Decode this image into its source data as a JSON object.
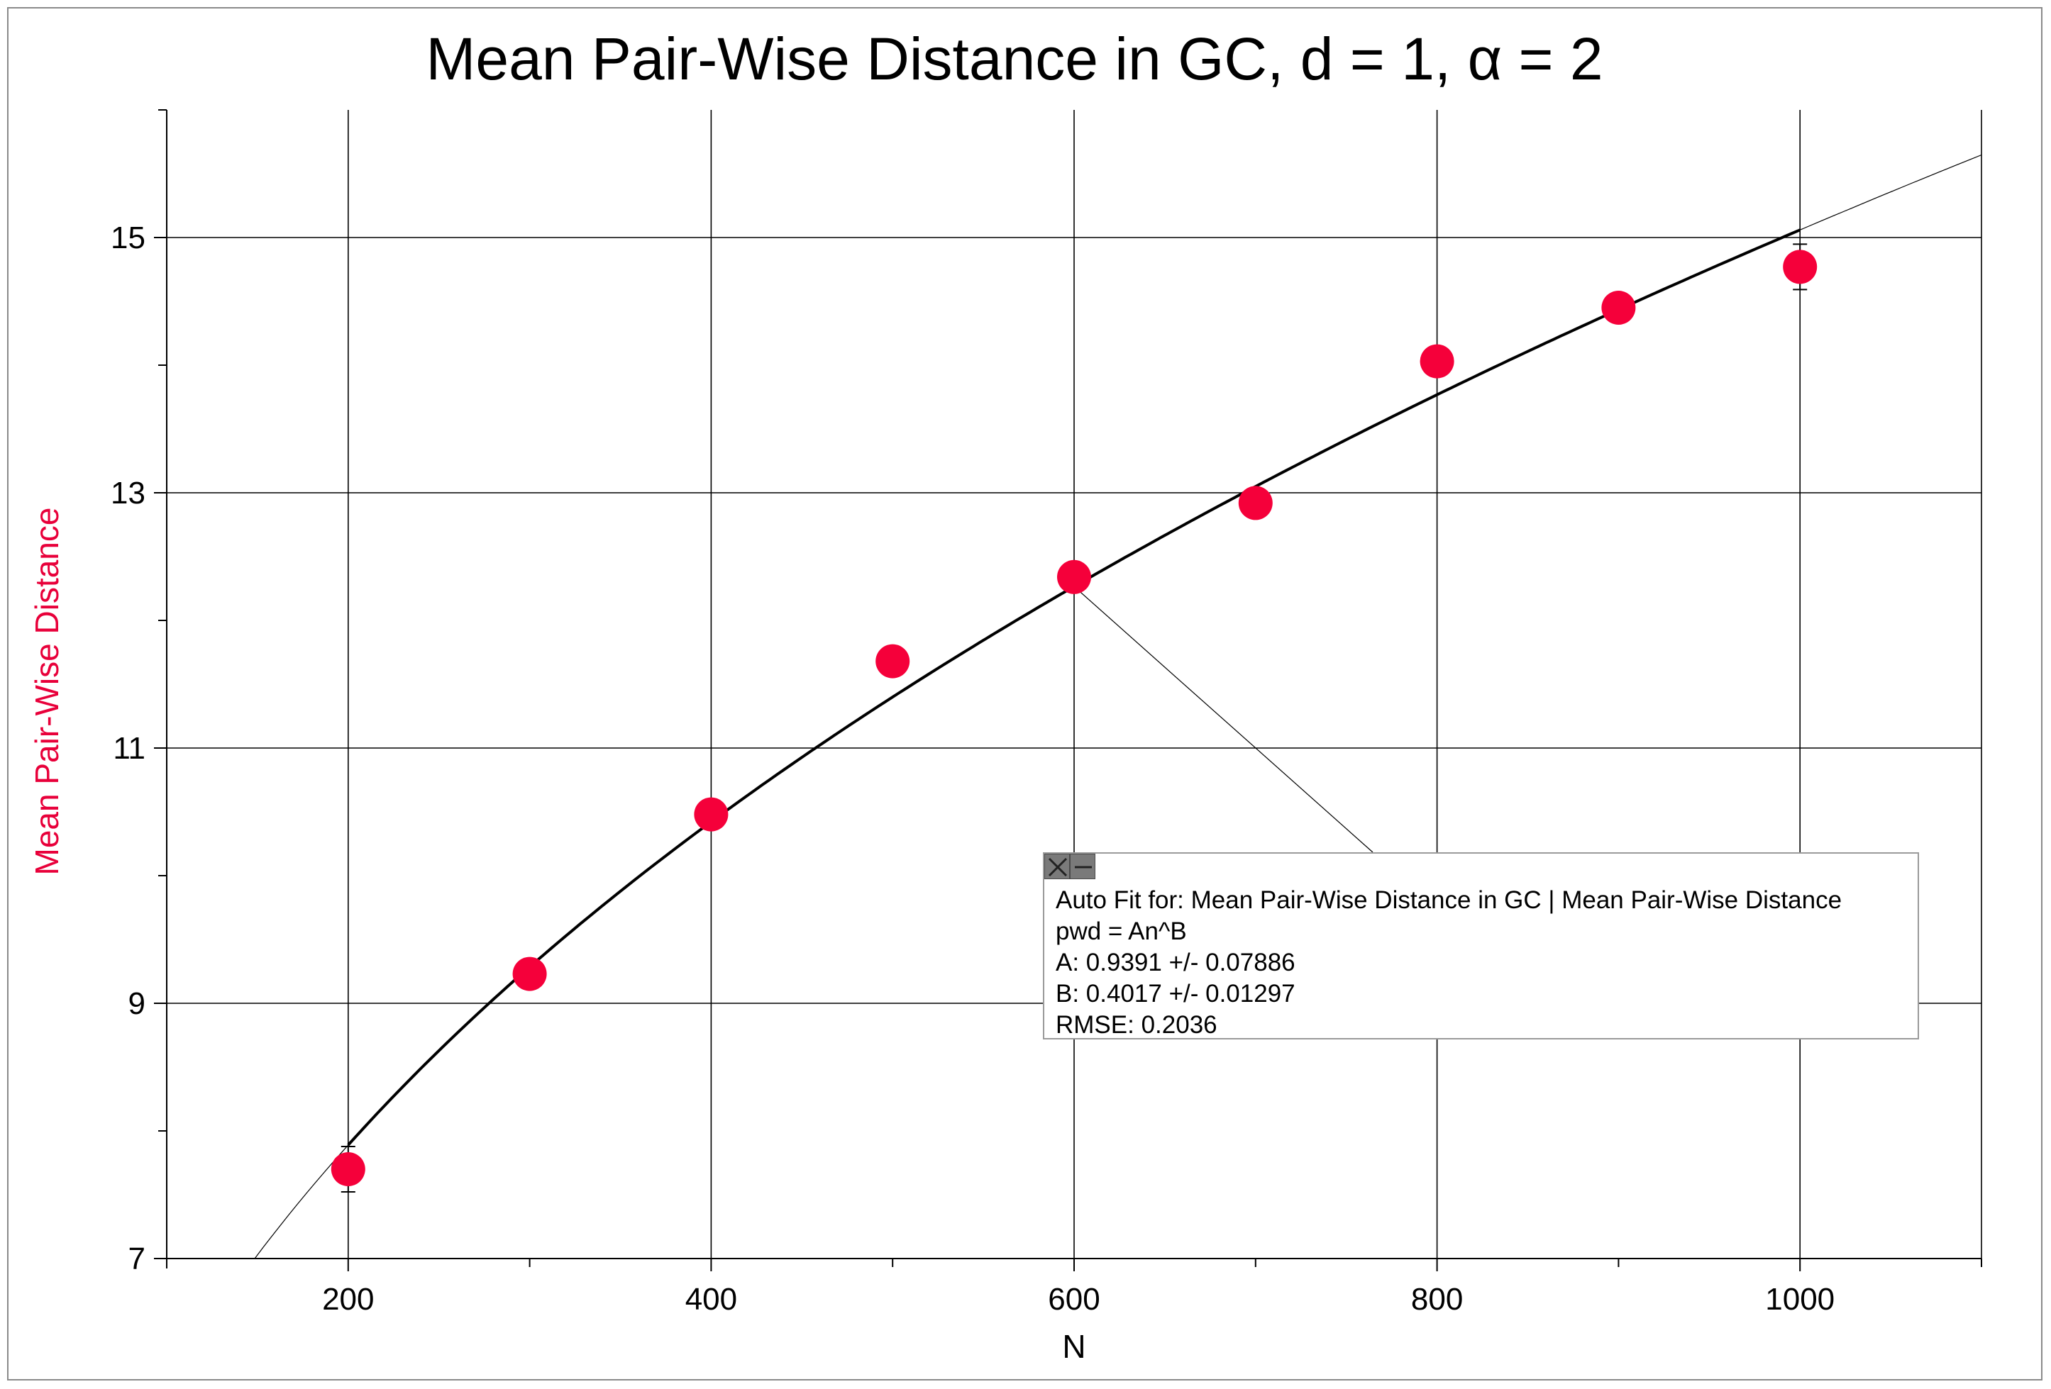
{
  "chart_data": {
    "type": "scatter",
    "title": "Mean Pair-Wise Distance in GC, d = 1, α = 2",
    "xlabel": "N",
    "ylabel": "Mean Pair-Wise Distance",
    "xlim": [
      100,
      1100
    ],
    "ylim": [
      7,
      16
    ],
    "xticks": [
      200,
      400,
      600,
      800,
      1000
    ],
    "yticks": [
      7,
      9,
      11,
      13,
      15
    ],
    "grid": true,
    "series": [
      {
        "x": [
          200,
          300,
          400,
          500,
          600,
          700,
          800,
          900,
          1000
        ],
        "y": [
          7.7,
          9.23,
          10.48,
          11.68,
          12.34,
          12.92,
          14.03,
          14.45,
          14.77
        ]
      }
    ],
    "fit": {
      "formula": "An^B",
      "A": 0.9391,
      "B": 0.4017
    }
  },
  "fit_box": {
    "line1": "Auto Fit for: Mean Pair-Wise Distance in GC | Mean Pair-Wise Distance",
    "line2": "pwd = An^B",
    "line3": "A: 0.9391 +/- 0.07886",
    "line4": "B: 0.4017 +/- 0.01297",
    "line5": "RMSE: 0.2036"
  },
  "colors": {
    "marker": "#f5003a",
    "ylabel": "#e8003a",
    "grid": "#000000",
    "fit_line": "#000000"
  }
}
